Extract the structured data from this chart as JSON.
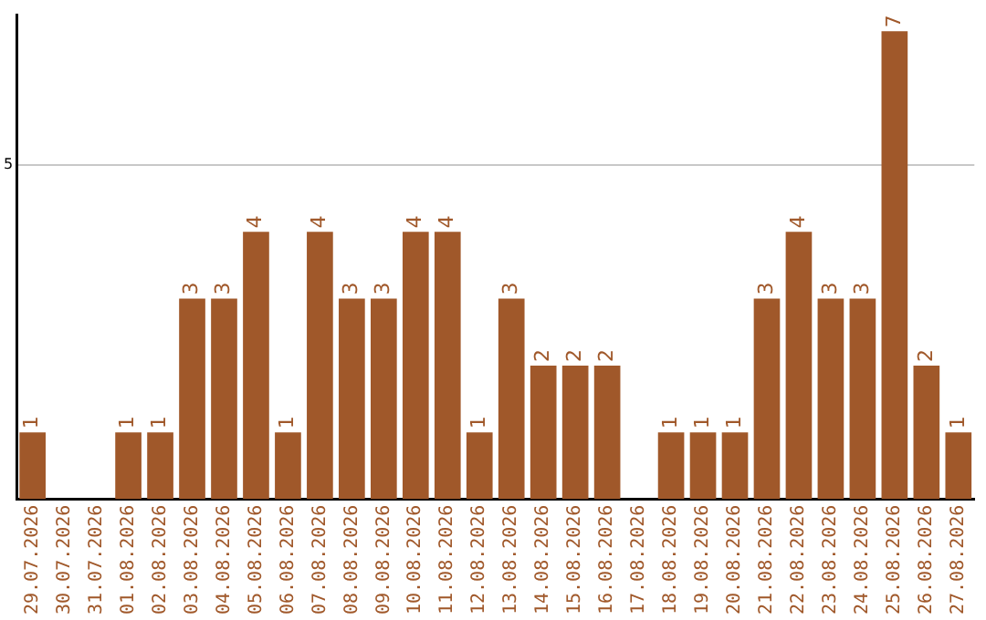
{
  "chart_data": {
    "type": "bar",
    "categories": [
      "29.07.2026",
      "30.07.2026",
      "31.07.2026",
      "01.08.2026",
      "02.08.2026",
      "03.08.2026",
      "04.08.2026",
      "05.08.2026",
      "06.08.2026",
      "07.08.2026",
      "08.08.2026",
      "09.08.2026",
      "10.08.2026",
      "11.08.2026",
      "12.08.2026",
      "13.08.2026",
      "14.08.2026",
      "15.08.2026",
      "16.08.2026",
      "17.08.2026",
      "18.08.2026",
      "19.08.2026",
      "20.08.2026",
      "21.08.2026",
      "22.08.2026",
      "23.08.2026",
      "24.08.2026",
      "25.08.2026",
      "26.08.2026",
      "27.08.2026"
    ],
    "values": [
      1,
      0,
      0,
      1,
      1,
      3,
      3,
      4,
      1,
      4,
      3,
      3,
      4,
      4,
      1,
      3,
      2,
      2,
      2,
      0,
      1,
      1,
      1,
      3,
      4,
      3,
      3,
      7,
      2,
      1
    ],
    "value_labels": [
      "1",
      null,
      null,
      "1",
      "1",
      "3",
      "3",
      "4",
      "1",
      "4",
      "3",
      "3",
      "4",
      "4",
      "1",
      "3",
      "2",
      "2",
      "2",
      null,
      "1",
      "1",
      "1",
      "3",
      "4",
      "3",
      "3",
      "7",
      "2",
      "1"
    ],
    "color": "#a0582a",
    "ylim": [
      0,
      7.25
    ],
    "yticks": [
      5
    ],
    "grid": "y",
    "legend": false
  }
}
